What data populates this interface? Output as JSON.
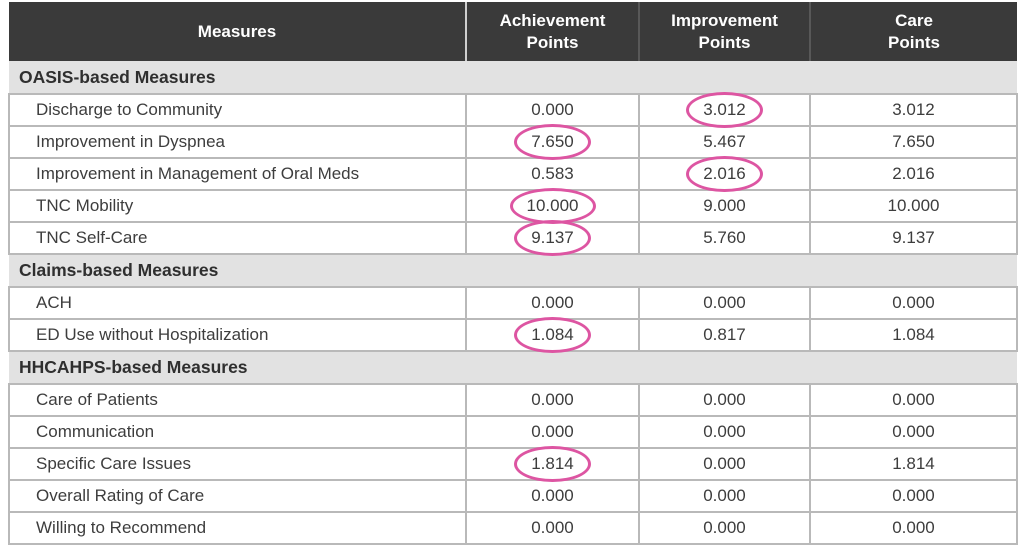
{
  "chart_data": {
    "type": "table",
    "header": {
      "measures": "Measures",
      "achievement": "Achievement\nPoints",
      "improvement": "Improvement\nPoints",
      "care": "Care\nPoints"
    },
    "columns": [
      "Measures",
      "Achievement Points",
      "Improvement Points",
      "Care Points"
    ],
    "sections": [
      {
        "title": "OASIS-based Measures",
        "rows": [
          {
            "name": "Discharge to Community",
            "values": [
              "0.000",
              "3.012",
              "3.012"
            ],
            "circled": [
              false,
              true,
              false
            ]
          },
          {
            "name": "Improvement in Dyspnea",
            "values": [
              "7.650",
              "5.467",
              "7.650"
            ],
            "circled": [
              true,
              false,
              false
            ]
          },
          {
            "name": "Improvement in Management of Oral Meds",
            "values": [
              "0.583",
              "2.016",
              "2.016"
            ],
            "circled": [
              false,
              true,
              false
            ]
          },
          {
            "name": "TNC Mobility",
            "values": [
              "10.000",
              "9.000",
              "10.000"
            ],
            "circled": [
              true,
              false,
              false
            ]
          },
          {
            "name": "TNC Self-Care",
            "values": [
              "9.137",
              "5.760",
              "9.137"
            ],
            "circled": [
              true,
              false,
              false
            ]
          }
        ]
      },
      {
        "title": "Claims-based Measures",
        "rows": [
          {
            "name": "ACH",
            "values": [
              "0.000",
              "0.000",
              "0.000"
            ],
            "circled": [
              false,
              false,
              false
            ]
          },
          {
            "name": "ED Use without Hospitalization",
            "values": [
              "1.084",
              "0.817",
              "1.084"
            ],
            "circled": [
              true,
              false,
              false
            ]
          }
        ]
      },
      {
        "title": "HHCAHPS-based Measures",
        "rows": [
          {
            "name": "Care of Patients",
            "values": [
              "0.000",
              "0.000",
              "0.000"
            ],
            "circled": [
              false,
              false,
              false
            ]
          },
          {
            "name": "Communication",
            "values": [
              "0.000",
              "0.000",
              "0.000"
            ],
            "circled": [
              false,
              false,
              false
            ]
          },
          {
            "name": "Specific Care Issues",
            "values": [
              "1.814",
              "0.000",
              "1.814"
            ],
            "circled": [
              true,
              false,
              false
            ]
          },
          {
            "name": "Overall Rating of Care",
            "values": [
              "0.000",
              "0.000",
              "0.000"
            ],
            "circled": [
              false,
              false,
              false
            ]
          },
          {
            "name": "Willing to Recommend",
            "values": [
              "0.000",
              "0.000",
              "0.000"
            ],
            "circled": [
              false,
              false,
              false
            ]
          }
        ]
      }
    ],
    "highlight": {
      "shape": "ellipse",
      "color": "#dd55a2"
    },
    "legend_position": "none",
    "grid": true
  },
  "colors": {
    "header_bg": "#3a3a3a",
    "header_text": "#ffffff",
    "section_bg": "#e2e2e2",
    "cell_border": "#b9b9b9",
    "body_text": "#3d3d3d",
    "highlight": "#dd55a2"
  }
}
